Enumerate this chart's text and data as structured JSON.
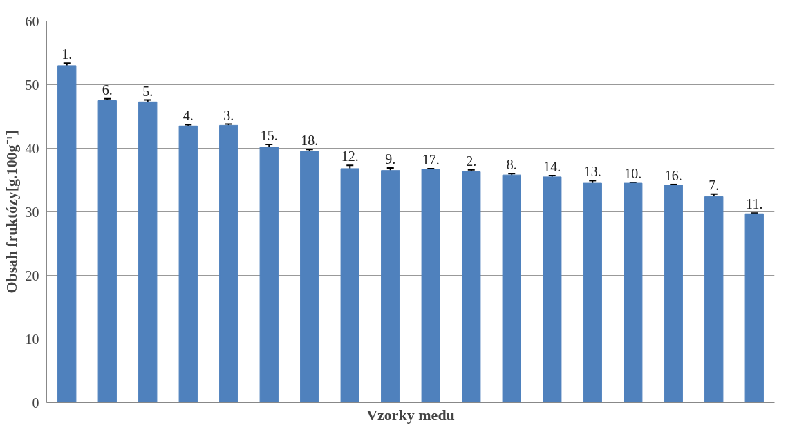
{
  "chart_data": {
    "type": "bar",
    "xlabel": "Vzorky medu",
    "ylabel": "Obsah fruktózy[g.100g⁻¹]",
    "categories": [
      "1.",
      "6.",
      "5.",
      "4.",
      "3.",
      "15.",
      "18.",
      "12.",
      "9.",
      "17.",
      "2.",
      "8.",
      "14.",
      "13.",
      "10.",
      "16.",
      "7.",
      "11."
    ],
    "values": [
      53.0,
      47.5,
      47.3,
      43.5,
      43.6,
      40.2,
      39.5,
      36.8,
      36.5,
      36.7,
      36.3,
      35.8,
      35.5,
      34.5,
      34.5,
      34.2,
      32.4,
      29.7
    ],
    "errors": [
      0.4,
      0.3,
      0.3,
      0.2,
      0.2,
      0.4,
      0.3,
      0.5,
      0.4,
      0.1,
      0.3,
      0.2,
      0.2,
      0.4,
      0.1,
      0.1,
      0.4,
      0.1
    ],
    "color": "#4f81bd",
    "ylim": [
      0,
      60
    ],
    "yticks": [
      0,
      10,
      20,
      30,
      40,
      50,
      60
    ],
    "grid": "y",
    "tick_labels": "y"
  }
}
